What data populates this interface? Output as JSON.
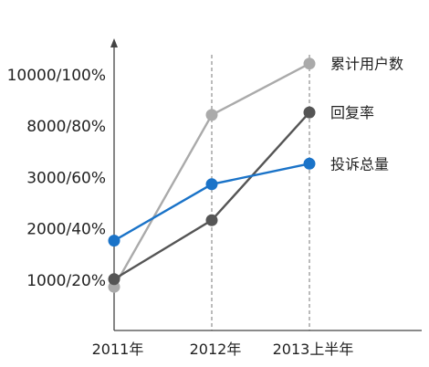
{
  "chart_data": {
    "type": "line",
    "categories": [
      "2011年",
      "2012年",
      "2013上半年"
    ],
    "y_tick_labels": [
      "1000/20%",
      "2000/40%",
      "3000/60%",
      "8000/80%",
      "10000/100%"
    ],
    "y_tick_values": [
      1,
      2,
      3,
      4,
      5
    ],
    "ylim": [
      0,
      5.8
    ],
    "grid": "vertical dashed lines at 2012年 and 2013上半年",
    "legend": "labels at right of each series end",
    "series": [
      {
        "name": "累计用户数",
        "color": "#aaaaaa",
        "values": [
          0.85,
          4.2,
          5.2
        ]
      },
      {
        "name": "回复率",
        "color": "#555555",
        "values": [
          1.0,
          2.15,
          4.25
        ]
      },
      {
        "name": "投诉总量",
        "color": "#1a73c8",
        "values": [
          1.75,
          2.85,
          3.25
        ]
      }
    ]
  }
}
